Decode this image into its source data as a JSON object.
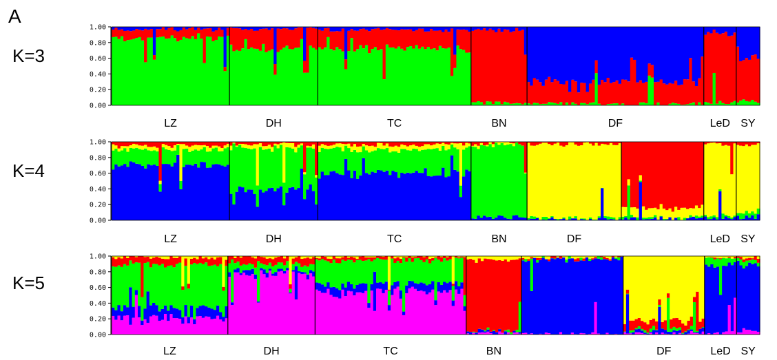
{
  "figure": {
    "panel_letter": "A"
  },
  "chart_data": [
    {
      "type": "stacked-bar",
      "label": "K=3",
      "ylim": [
        0,
        1
      ],
      "yticks": [
        "1.00",
        "0.80",
        "0.60",
        "0.40",
        "0.20",
        "0.00"
      ],
      "colors": [
        "#00ff00",
        "#ff0000",
        "#0000ff"
      ],
      "populations": [
        {
          "name": "LZ",
          "individuals": 40,
          "means": [
            0.86,
            0.11,
            0.03
          ]
        },
        {
          "name": "DH",
          "individuals": 30,
          "means": [
            0.72,
            0.25,
            0.03
          ]
        },
        {
          "name": "TC",
          "individuals": 52,
          "means": [
            0.72,
            0.24,
            0.04
          ]
        },
        {
          "name": "BN",
          "individuals": 19,
          "means": [
            0.03,
            0.93,
            0.04
          ]
        },
        {
          "name": "DF",
          "individuals": 60,
          "means": [
            0.02,
            0.28,
            0.7
          ]
        },
        {
          "name": "LeD",
          "individuals": 11,
          "means": [
            0.04,
            0.88,
            0.08
          ]
        },
        {
          "name": "SY",
          "individuals": 8,
          "means": [
            0.05,
            0.55,
            0.4
          ]
        }
      ]
    },
    {
      "type": "stacked-bar",
      "label": "K=4",
      "ylim": [
        0,
        1
      ],
      "yticks": [
        "1.00",
        "0.80",
        "0.60",
        "0.40",
        "0.20",
        "0.00"
      ],
      "colors": [
        "#0000ff",
        "#00ff00",
        "#ffff00",
        "#ff0000"
      ],
      "populations": [
        {
          "name": "LZ",
          "individuals": 40,
          "means": [
            0.7,
            0.2,
            0.05,
            0.05
          ]
        },
        {
          "name": "DH",
          "individuals": 30,
          "means": [
            0.4,
            0.52,
            0.04,
            0.04
          ]
        },
        {
          "name": "TC",
          "individuals": 52,
          "means": [
            0.6,
            0.3,
            0.06,
            0.04
          ]
        },
        {
          "name": "BN",
          "individuals": 19,
          "means": [
            0.04,
            0.92,
            0.02,
            0.02
          ]
        },
        {
          "name": "DF",
          "individuals": 32,
          "means": [
            0.01,
            0.02,
            0.94,
            0.03
          ]
        },
        {
          "name": "LeD",
          "individuals": 28,
          "means": [
            0.02,
            0.02,
            0.12,
            0.84
          ]
        },
        {
          "name": "SY",
          "individuals": 11,
          "means": [
            0.03,
            0.04,
            0.9,
            0.03
          ]
        },
        {
          "name": "",
          "individuals": 8,
          "means": [
            0.04,
            0.06,
            0.86,
            0.04
          ]
        }
      ]
    },
    {
      "type": "stacked-bar",
      "label": "K=5",
      "ylim": [
        0,
        1
      ],
      "yticks": [
        "1.00",
        "0.80",
        "0.60",
        "0.40",
        "0.20",
        "0.00"
      ],
      "colors": [
        "#ff00ff",
        "#0000ff",
        "#00ff00",
        "#ff0000",
        "#ffff00"
      ],
      "populations": [
        {
          "name": "LZ",
          "individuals": 40,
          "means": [
            0.22,
            0.12,
            0.55,
            0.09,
            0.02
          ]
        },
        {
          "name": "DH",
          "individuals": 30,
          "means": [
            0.78,
            0.04,
            0.08,
            0.09,
            0.01
          ]
        },
        {
          "name": "TC",
          "individuals": 52,
          "means": [
            0.55,
            0.1,
            0.3,
            0.04,
            0.01
          ]
        },
        {
          "name": "BN",
          "individuals": 19,
          "means": [
            0.02,
            0.02,
            0.01,
            0.9,
            0.05
          ]
        },
        {
          "name": "DF",
          "individuals": 35,
          "means": [
            0.01,
            0.95,
            0.01,
            0.01,
            0.02
          ]
        },
        {
          "name": "",
          "individuals": 28,
          "means": [
            0.02,
            0.03,
            0.02,
            0.1,
            0.83
          ]
        },
        {
          "name": "LeD",
          "individuals": 11,
          "means": [
            0.02,
            0.84,
            0.1,
            0.02,
            0.02
          ]
        },
        {
          "name": "SY",
          "individuals": 8,
          "means": [
            0.05,
            0.85,
            0.05,
            0.03,
            0.02
          ]
        }
      ]
    }
  ],
  "xlabels": {
    "k3": [
      {
        "text": "LZ",
        "pop": 0
      },
      {
        "text": "DH",
        "pop": 1
      },
      {
        "text": "TC",
        "pop": 2
      },
      {
        "text": "BN",
        "pop": 3
      },
      {
        "text": "DF",
        "pop": 4
      },
      {
        "text": "LeD",
        "pop": 5
      },
      {
        "text": "SY",
        "pop": 6
      }
    ],
    "k4": [
      {
        "text": "LZ",
        "pop": 0
      },
      {
        "text": "DH",
        "pop": 1
      },
      {
        "text": "TC",
        "pop": 2
      },
      {
        "text": "BN",
        "pop": 3
      },
      {
        "text": "DF",
        "pop": 4
      },
      {
        "text": "LeD",
        "pop": 6
      },
      {
        "text": "SY",
        "pop": 7
      }
    ],
    "k5": [
      {
        "text": "LZ",
        "pop": 0
      },
      {
        "text": "DH",
        "pop": 1
      },
      {
        "text": "TC",
        "pop": 2
      },
      {
        "text": "BN",
        "pop": 3
      },
      {
        "text": "DF",
        "pop": 5
      },
      {
        "text": "LeD",
        "pop": 6
      },
      {
        "text": "SY",
        "pop": 7
      }
    ]
  }
}
